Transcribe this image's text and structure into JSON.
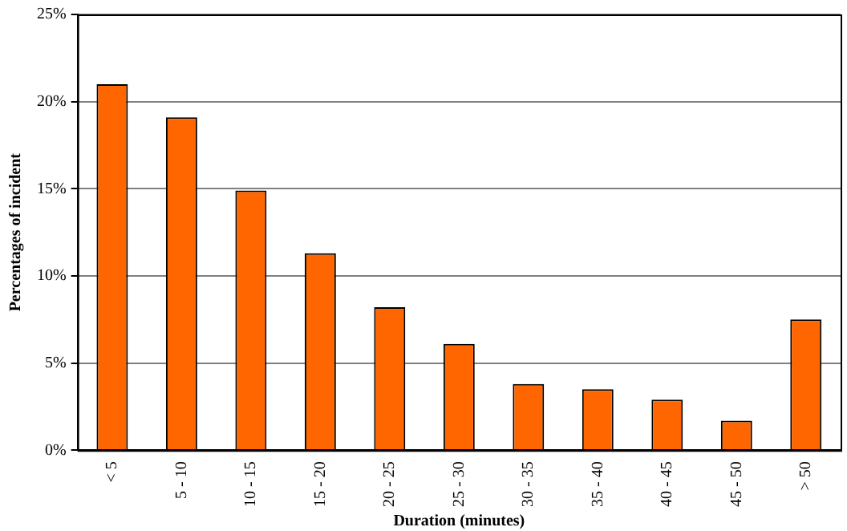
{
  "chart_data": {
    "type": "bar",
    "xlabel": "Duration (minutes)",
    "ylabel": "Percentages of incident",
    "categories": [
      "< 5",
      "5 - 10",
      "10 - 15",
      "15 - 20",
      "20 - 25",
      "25 - 30",
      "30 - 35",
      "35 - 40",
      "40 - 45",
      "45 - 50",
      "> 50"
    ],
    "values": [
      21,
      19.1,
      14.9,
      11.3,
      8.2,
      6.1,
      3.8,
      3.5,
      2.9,
      1.7,
      7.5
    ],
    "color": "#ff6600",
    "ylim": [
      0,
      25
    ],
    "yticks": [
      {
        "value": 0,
        "label": "0%"
      },
      {
        "value": 5,
        "label": "5%"
      },
      {
        "value": 10,
        "label": "10%"
      },
      {
        "value": 15,
        "label": "15%"
      },
      {
        "value": 20,
        "label": "20%"
      },
      {
        "value": 25,
        "label": "25%"
      }
    ],
    "grid": "y",
    "legend": false
  }
}
